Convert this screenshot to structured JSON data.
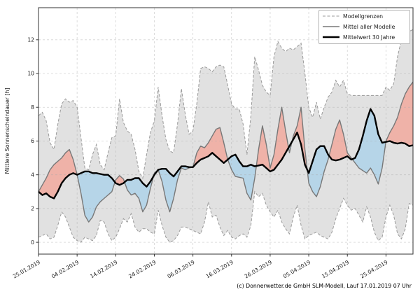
{
  "chart_data": {
    "type": "line",
    "title": "",
    "xlabel": "",
    "ylabel": "Mittlere Sonnenscheindauer [h]",
    "ylim": [
      -0.7,
      13.9
    ],
    "yticks": [
      0,
      2,
      4,
      6,
      8,
      10,
      12
    ],
    "xlim": [
      0,
      97
    ],
    "x_unit": "days since 25.01.2019",
    "xticks": [
      {
        "day": 0,
        "label": "25.01.2019"
      },
      {
        "day": 10,
        "label": "04.02.2019"
      },
      {
        "day": 20,
        "label": "14.02.2019"
      },
      {
        "day": 30,
        "label": "24.02.2019"
      },
      {
        "day": 40,
        "label": "06.03.2019"
      },
      {
        "day": 50,
        "label": "16.03.2019"
      },
      {
        "day": 60,
        "label": "26.03.2019"
      },
      {
        "day": 70,
        "label": "05.04.2019"
      },
      {
        "day": 80,
        "label": "15.04.2019"
      },
      {
        "day": 90,
        "label": "25.04.2019"
      }
    ],
    "grid": true,
    "legend": {
      "position": "top-right",
      "entries": [
        {
          "label": "Modellgrenzen",
          "style": "dashed",
          "color": "#9a9a9a"
        },
        {
          "label": "Mittel aller Modelle",
          "style": "solid",
          "color": "#787878"
        },
        {
          "label": "Mittelwert 30 Jahre",
          "style": "solid-bold",
          "color": "#000000"
        }
      ]
    },
    "fills": {
      "band_color": "#dcdcdc",
      "above_color": "#efb2a8",
      "below_color": "#b6d5e8"
    },
    "series": [
      {
        "key": "max",
        "name": "Modellgrenzen (oberes Modell)",
        "values": [
          7.5,
          7.7,
          7.2,
          5.9,
          5.5,
          7.0,
          8.2,
          8.5,
          8.3,
          8.4,
          8.0,
          6.2,
          4.4,
          4.3,
          5.2,
          5.8,
          4.6,
          4.3,
          5.3,
          6.2,
          6.3,
          8.5,
          7.1,
          6.6,
          6.4,
          5.5,
          4.2,
          3.8,
          5.2,
          6.5,
          7.2,
          9.2,
          7.5,
          6.1,
          5.4,
          5.3,
          7.0,
          9.1,
          7.6,
          6.4,
          6.6,
          8.2,
          10.3,
          10.4,
          10.3,
          10.1,
          10.4,
          10.5,
          10.4,
          9.3,
          8.2,
          7.9,
          7.9,
          7.0,
          5.2,
          7.5,
          11.0,
          10.2,
          9.3,
          8.9,
          8.7,
          11.0,
          11.9,
          11.5,
          11.3,
          11.5,
          11.4,
          11.6,
          11.8,
          10.0,
          8.0,
          7.4,
          8.3,
          7.3,
          8.0,
          8.6,
          8.9,
          9.6,
          9.2,
          9.6,
          8.8,
          8.7,
          8.7,
          8.7,
          8.7,
          8.7,
          8.7,
          8.7,
          8.7,
          8.7,
          9.2,
          9.0,
          9.4,
          11.0,
          12.0,
          12.4,
          12.5,
          12.6
        ]
      },
      {
        "key": "min",
        "name": "Modellgrenzen (unteres Modell)",
        "values": [
          0.3,
          0.4,
          0.5,
          0.2,
          0.3,
          1.0,
          1.8,
          1.5,
          0.9,
          0.3,
          0.1,
          0.0,
          0.3,
          0.2,
          0.1,
          0.4,
          1.3,
          1.2,
          0.5,
          0.1,
          0.3,
          0.8,
          1.4,
          1.2,
          1.7,
          0.9,
          0.6,
          0.8,
          0.8,
          0.6,
          0.5,
          1.9,
          1.0,
          0.3,
          0.0,
          0.1,
          0.4,
          0.9,
          0.9,
          0.8,
          0.7,
          0.6,
          0.5,
          1.2,
          2.4,
          1.5,
          1.6,
          0.9,
          0.4,
          0.7,
          0.3,
          0.2,
          0.4,
          0.5,
          0.3,
          1.0,
          3.0,
          2.7,
          2.9,
          2.2,
          1.8,
          1.5,
          1.9,
          1.2,
          0.8,
          0.5,
          1.5,
          2.2,
          1.0,
          0.2,
          0.4,
          0.5,
          0.6,
          0.4,
          0.3,
          0.2,
          0.6,
          1.4,
          2.0,
          2.6,
          2.2,
          1.9,
          2.0,
          1.6,
          1.2,
          2.1,
          1.5,
          0.6,
          0.1,
          0.3,
          1.5,
          2.2,
          1.6,
          0.5,
          0.2,
          0.8,
          2.3,
          2.2
        ]
      },
      {
        "key": "mean",
        "name": "Mittel aller Modelle",
        "values": [
          3.0,
          3.4,
          3.8,
          4.3,
          4.6,
          4.8,
          5.0,
          5.3,
          5.5,
          4.9,
          4.0,
          2.9,
          1.6,
          1.2,
          1.5,
          2.1,
          2.4,
          2.6,
          2.8,
          3.0,
          3.7,
          3.95,
          3.75,
          3.1,
          2.8,
          2.9,
          2.6,
          1.8,
          2.2,
          3.2,
          4.1,
          4.3,
          3.6,
          2.5,
          1.8,
          2.6,
          3.7,
          4.4,
          4.3,
          4.4,
          4.45,
          5.3,
          5.7,
          5.6,
          5.9,
          6.3,
          6.7,
          6.8,
          5.9,
          4.9,
          4.3,
          3.9,
          3.85,
          3.8,
          2.9,
          2.5,
          3.8,
          5.5,
          6.9,
          5.8,
          4.4,
          5.2,
          6.7,
          8.0,
          6.6,
          5.3,
          6.3,
          6.9,
          8.0,
          5.5,
          3.5,
          3.0,
          2.7,
          3.3,
          4.2,
          4.9,
          5.8,
          6.7,
          7.25,
          6.4,
          5.3,
          5.0,
          4.7,
          4.4,
          4.25,
          4.1,
          4.4,
          4.0,
          3.45,
          4.4,
          6.0,
          6.5,
          6.9,
          7.4,
          8.2,
          8.8,
          9.2,
          9.5
        ]
      },
      {
        "key": "y30",
        "name": "Mittelwert 30 Jahre",
        "values": [
          3.0,
          2.8,
          2.9,
          2.7,
          2.6,
          3.0,
          3.5,
          3.8,
          4.0,
          4.1,
          4.0,
          4.1,
          4.2,
          4.2,
          4.1,
          4.1,
          4.05,
          4.0,
          4.0,
          3.8,
          3.5,
          3.4,
          3.5,
          3.7,
          3.7,
          3.8,
          3.8,
          3.5,
          3.3,
          3.6,
          4.0,
          4.3,
          4.35,
          4.35,
          4.1,
          3.9,
          4.2,
          4.5,
          4.5,
          4.45,
          4.45,
          4.7,
          4.9,
          5.0,
          5.1,
          5.3,
          5.1,
          4.9,
          4.7,
          4.9,
          5.1,
          5.2,
          4.8,
          4.5,
          4.5,
          4.6,
          4.5,
          4.55,
          4.6,
          4.4,
          4.2,
          4.3,
          4.6,
          4.9,
          5.3,
          5.7,
          6.1,
          6.5,
          5.8,
          4.6,
          4.1,
          4.8,
          5.5,
          5.7,
          5.7,
          5.2,
          4.9,
          4.85,
          4.9,
          5.0,
          5.1,
          4.9,
          5.0,
          5.5,
          6.3,
          7.2,
          7.9,
          7.5,
          6.4,
          5.9,
          5.95,
          6.0,
          5.9,
          5.85,
          5.9,
          5.85,
          5.7,
          5.75
        ]
      }
    ],
    "caption": "(c) Donnerwetter.de GmbH SLM-Modell, Lauf 17.01.2019 07 Uhr"
  }
}
